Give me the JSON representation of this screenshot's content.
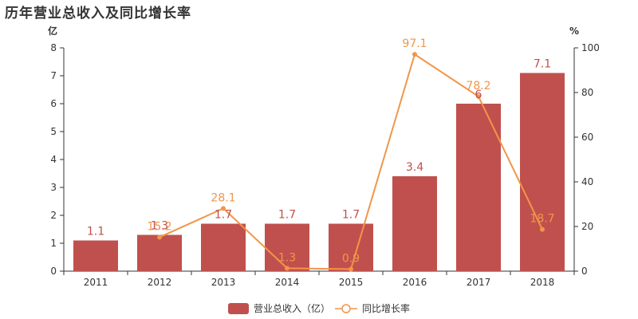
{
  "chart_data": {
    "type": "bar",
    "title": "历年营业总收入及同比增长率",
    "categories": [
      "2011",
      "2012",
      "2013",
      "2014",
      "2015",
      "2016",
      "2017",
      "2018"
    ],
    "series": [
      {
        "name": "营业总收入（亿）",
        "type": "bar",
        "axis": "left",
        "color": "#c0504d",
        "values": [
          1.1,
          1.3,
          1.7,
          1.7,
          1.7,
          3.4,
          6,
          7.1
        ],
        "labels": [
          "1.1",
          "1.3",
          "1.7",
          "1.7",
          "1.7",
          "3.4",
          "6",
          "7.1"
        ]
      },
      {
        "name": "同比增长率",
        "type": "line",
        "axis": "right",
        "color": "#f0964a",
        "values": [
          null,
          15.2,
          28.1,
          1.3,
          0.9,
          97.1,
          78.2,
          18.7
        ],
        "labels": [
          "",
          "15.2",
          "28.1",
          "1.3",
          "0.9",
          "97.1",
          "78.2",
          "18.7"
        ]
      }
    ],
    "y_left": {
      "unit": "亿",
      "lim": [
        0,
        8
      ],
      "ticks": [
        "0",
        "1",
        "2",
        "3",
        "4",
        "5",
        "6",
        "7",
        "8"
      ]
    },
    "y_right": {
      "unit": "%",
      "lim": [
        0,
        100
      ],
      "ticks": [
        "0",
        "20",
        "40",
        "60",
        "80",
        "100"
      ]
    },
    "grid": false,
    "legend_position": "bottom-center"
  }
}
